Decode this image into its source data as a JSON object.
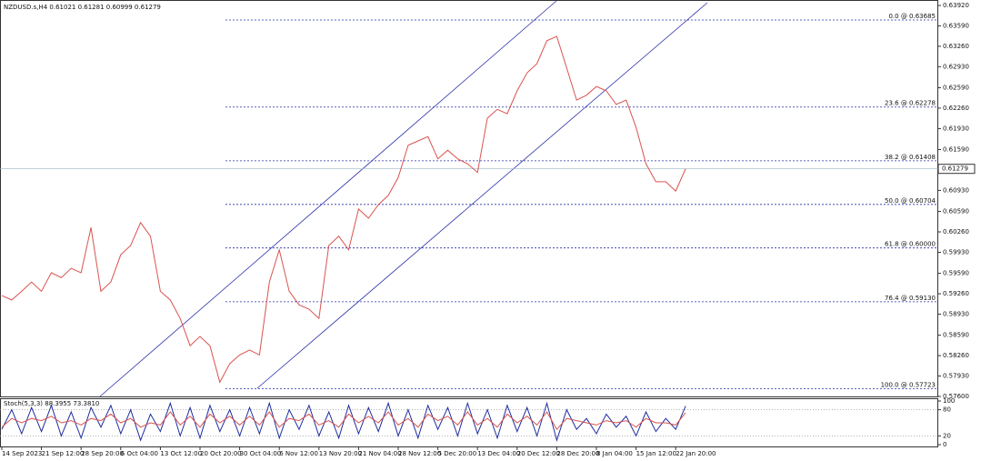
{
  "chart_data": [
    {
      "type": "line",
      "title": "NZDUSD.s,H4  0.61021 0.61281 0.60999 0.61279",
      "categories": [
        "14 Sep 2023",
        null,
        null,
        null,
        "21 Sep 12:00",
        null,
        null,
        null,
        "28 Sep 20:00",
        null,
        null,
        null,
        "6 Oct 04:00",
        null,
        null,
        null,
        "13 Oct 12:00",
        null,
        null,
        null,
        "20 Oct 20:00",
        null,
        null,
        null,
        "30 Oct 04:00",
        null,
        null,
        null,
        "6 Nov 12:00",
        null,
        null,
        null,
        "13 Nov 20:00",
        null,
        null,
        null,
        "21 Nov 04:00",
        null,
        null,
        null,
        "28 Nov 12:00",
        null,
        null,
        null,
        "5 Dec 20:00",
        null,
        null,
        null,
        "13 Dec 04:00",
        null,
        null,
        null,
        "20 Dec 12:00",
        null,
        null,
        null,
        "28 Dec 20:00",
        null,
        null,
        null,
        "8 Jan 04:00",
        null,
        null,
        null,
        "15 Jan 12:00",
        null,
        null,
        null,
        "22 Jan 20:00",
        null
      ],
      "series": [
        {
          "color": "#d9534f",
          "values": [
            0.5923,
            0.5916,
            0.593,
            0.5945,
            0.593,
            0.596,
            0.5952,
            0.5967,
            0.596,
            0.6033,
            0.593,
            0.5945,
            0.5989,
            0.6004,
            0.6041,
            0.6019,
            0.593,
            0.5916,
            0.5886,
            0.5842,
            0.5857,
            0.5842,
            0.5783,
            0.5813,
            0.5827,
            0.5835,
            0.5827,
            0.5945,
            0.5997,
            0.593,
            0.5908,
            0.5901,
            0.5886,
            0.6004,
            0.6019,
            0.5997,
            0.6063,
            0.6048,
            0.607,
            0.6085,
            0.6114,
            0.6166,
            0.6173,
            0.618,
            0.6144,
            0.6158,
            0.6144,
            0.6136,
            0.6122,
            0.621,
            0.6224,
            0.6217,
            0.6254,
            0.6283,
            0.6298,
            0.6335,
            0.6342,
            0.6291,
            0.6239,
            0.6247,
            0.6261,
            0.6254,
            0.6232,
            0.6239,
            0.6195,
            0.6136,
            0.6107,
            0.6107,
            0.6092,
            0.6128
          ]
        }
      ],
      "ylim": [
        0.576,
        0.6392
      ],
      "yticks": [
        {
          "value": 0.6392,
          "label": "0.63920"
        },
        {
          "value": 0.6359,
          "label": "0.63590"
        },
        {
          "value": 0.6326,
          "label": "0.63260"
        },
        {
          "value": 0.6293,
          "label": "0.62930"
        },
        {
          "value": 0.6259,
          "label": "0.62590"
        },
        {
          "value": 0.6226,
          "label": "0.62260"
        },
        {
          "value": 0.6193,
          "label": "0.61930"
        },
        {
          "value": 0.6159,
          "label": "0.61590"
        },
        {
          "value": 0.6093,
          "label": "0.60930"
        },
        {
          "value": 0.6059,
          "label": "0.60590"
        },
        {
          "value": 0.6026,
          "label": "0.60260"
        },
        {
          "value": 0.5993,
          "label": "0.59930"
        },
        {
          "value": 0.5959,
          "label": "0.59590"
        },
        {
          "value": 0.5926,
          "label": "0.59260"
        },
        {
          "value": 0.5893,
          "label": "0.58930"
        },
        {
          "value": 0.5859,
          "label": "0.58590"
        },
        {
          "value": 0.5826,
          "label": "0.58260"
        },
        {
          "value": 0.5793,
          "label": "0.57930"
        },
        {
          "value": 0.576,
          "label": "0.57600"
        }
      ],
      "current_price": 0.61279,
      "annotations": [
        {
          "value": 0.63685,
          "label": "0.0 @ 0.63685"
        },
        {
          "value": 0.62278,
          "label": "23.6 @ 0.62278"
        },
        {
          "value": 0.61408,
          "label": "38.2 @ 0.61408"
        },
        {
          "value": 0.60704,
          "label": "50.0 @ 0.60704"
        },
        {
          "value": 0.6,
          "label": "61.8 @ 0.60000"
        },
        {
          "value": 0.5913,
          "label": "76.4 @ 0.59130"
        },
        {
          "value": 0.57723,
          "label": "100.0 @ 0.57723"
        }
      ]
    },
    {
      "type": "line",
      "title": "Stoch(5,3,3) 88.3955 73.3810",
      "ylim": [
        0,
        100
      ],
      "yticks": [
        0,
        20,
        80,
        100
      ],
      "series": [
        {
          "color": "#1f2f9e",
          "values": [
            35,
            80,
            25,
            85,
            30,
            90,
            20,
            75,
            15,
            85,
            40,
            90,
            25,
            80,
            10,
            70,
            30,
            95,
            20,
            85,
            15,
            90,
            30,
            80,
            20,
            85,
            25,
            95,
            15,
            80,
            35,
            90,
            20,
            75,
            15,
            90,
            25,
            85,
            30,
            95,
            20,
            80,
            15,
            90,
            35,
            85,
            20,
            95,
            25,
            80,
            15,
            90,
            30,
            85,
            20,
            95,
            10,
            80,
            35,
            60,
            25,
            70,
            40,
            65,
            20,
            75,
            30,
            60,
            35,
            88.3955
          ]
        },
        {
          "color": "#d9534f",
          "values": [
            40,
            60,
            50,
            60,
            55,
            65,
            50,
            55,
            45,
            60,
            55,
            70,
            50,
            60,
            40,
            50,
            45,
            75,
            45,
            65,
            40,
            70,
            50,
            65,
            45,
            65,
            45,
            75,
            40,
            60,
            55,
            70,
            45,
            55,
            40,
            70,
            50,
            65,
            50,
            75,
            45,
            60,
            40,
            70,
            55,
            65,
            45,
            75,
            45,
            60,
            40,
            70,
            50,
            65,
            45,
            75,
            35,
            60,
            55,
            50,
            45,
            55,
            50,
            55,
            40,
            60,
            50,
            50,
            45,
            73.381
          ]
        }
      ]
    }
  ]
}
